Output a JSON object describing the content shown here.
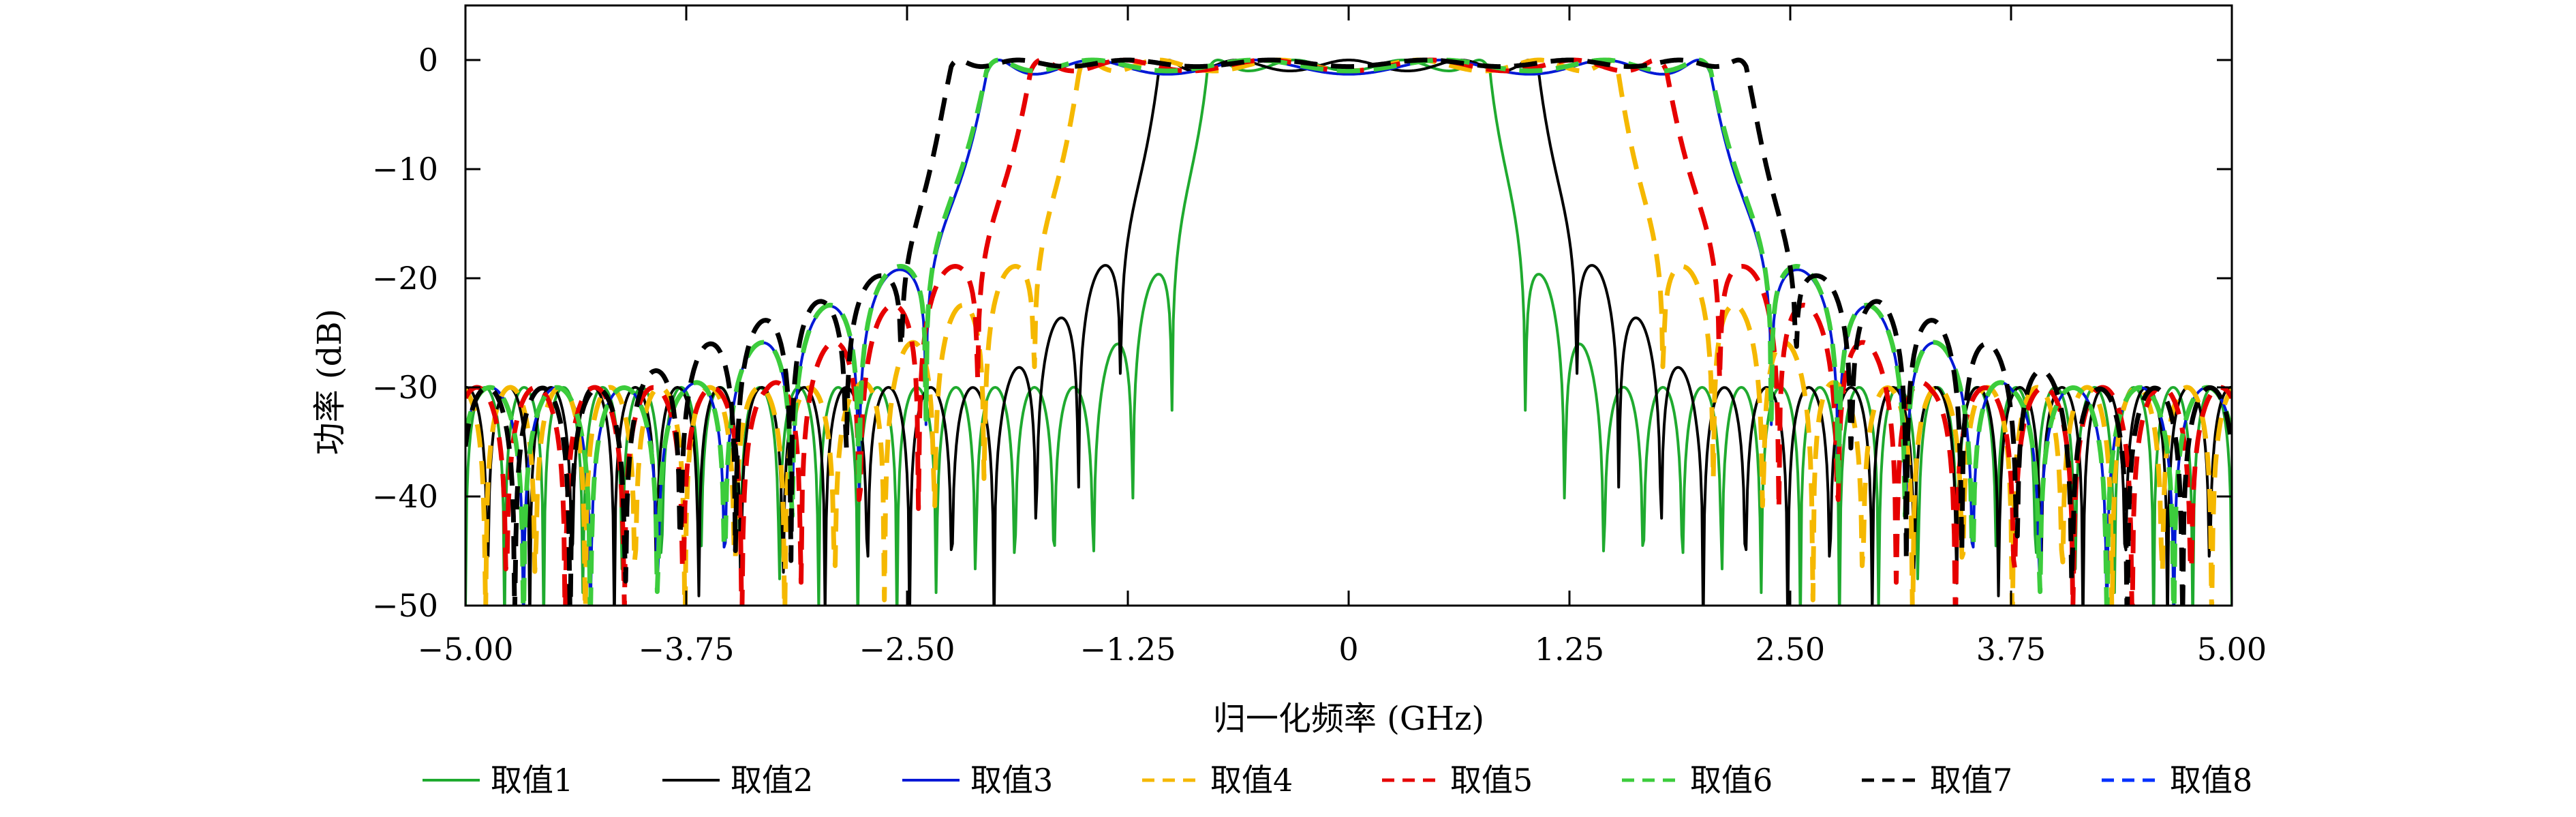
{
  "chart_data": {
    "type": "line",
    "xlabel": "归一化频率 (GHz)",
    "ylabel": "功率 (dB)",
    "xlim": [
      -5,
      5
    ],
    "ylim": [
      -50,
      5
    ],
    "xticks": [
      -5,
      -3.75,
      -2.5,
      -1.25,
      0,
      1.25,
      2.5,
      3.75,
      5
    ],
    "xtick_labels": [
      "-5.00",
      "-3.75",
      "-2.50",
      "-1.25",
      "0",
      "1.25",
      "2.50",
      "3.75",
      "5.00"
    ],
    "yticks": [
      0,
      -10,
      -20,
      -30,
      -40,
      -50
    ],
    "ytick_labels": [
      "0",
      "-10",
      "-20",
      "-30",
      "-40",
      "-50"
    ],
    "grid": false,
    "legend_position": "bottom",
    "series": [
      {
        "name": "取值1",
        "color": "#1faa2f",
        "dash": "solid",
        "bw": 1.6,
        "N": 4,
        "ripple": 1.0,
        "x": [
          -5,
          -4.9,
          -4.6,
          -4.3,
          -3.95,
          -3.55,
          -3.25,
          -2.9,
          -2.5,
          -2.05,
          -1.6,
          -1.0,
          0,
          1.0,
          1.6,
          2.05,
          2.5,
          2.9,
          3.25,
          3.55,
          3.95,
          4.3,
          4.6,
          4.9,
          5
        ],
        "y": [
          -50,
          -36,
          -27.5,
          -31,
          -50,
          -28,
          -26,
          -30,
          -50,
          -22,
          -50,
          -6,
          -0.5,
          -6,
          -50,
          -22,
          -50,
          -30,
          -26,
          -28,
          -50,
          -31,
          -27.5,
          -36,
          -50
        ]
      },
      {
        "name": "取值2",
        "color": "#000000",
        "dash": "solid",
        "bw": 2.15,
        "N": 5,
        "ripple": 1.0,
        "x": [
          -5,
          -4.6,
          -4.4,
          -4.1,
          -3.75,
          -3.25,
          -3.0,
          -2.65,
          -2.4,
          -2.15,
          -1.5,
          -0.8,
          0,
          0.8,
          1.5,
          2.15,
          2.4,
          2.65,
          3.0,
          3.25,
          3.75,
          4.1,
          4.4,
          4.6,
          5
        ],
        "y": [
          -23,
          -28,
          -50,
          -26,
          -21.5,
          -50,
          -30,
          -18.3,
          -30,
          -50,
          -7,
          -1,
          -0.3,
          -1,
          -7,
          -50,
          -30,
          -18.3,
          -30,
          -50,
          -21.5,
          -26,
          -50,
          -28,
          -23
        ]
      },
      {
        "name": "取值3",
        "color": "#0018d6",
        "dash": "solid",
        "bw": 4.1,
        "N": 6,
        "ripple": 1.3,
        "x": [
          -5,
          -4.8,
          -4.3,
          -3.75,
          -3.3,
          -3.1,
          -2.85,
          -2.7,
          -2.0,
          -1.0,
          0,
          1.0,
          2.0,
          2.7,
          2.85,
          3.1,
          3.3,
          3.75,
          4.3,
          4.8,
          5
        ],
        "y": [
          -38,
          -8,
          -27.4,
          -50,
          -23,
          -25,
          -40,
          -50,
          -5,
          -0.4,
          -1.3,
          -0.4,
          -5,
          -50,
          -40,
          -25,
          -23,
          -50,
          -27.4,
          -8,
          -38
        ]
      },
      {
        "name": "取值4",
        "color": "#f5b800",
        "dash": "dashed",
        "bw": 3.05,
        "N": 6,
        "ripple": 1.0,
        "x": [
          -5,
          -4.8,
          -4.5,
          -4.3,
          -4.0,
          -3.55,
          -3.05,
          -2.6,
          -2.0,
          -1.0,
          0,
          1.0,
          2.0,
          2.6,
          3.05,
          3.55,
          4.0,
          4.3,
          4.5,
          4.8,
          5
        ],
        "y": [
          -15,
          -15.5,
          -25,
          -30,
          -15,
          -12.5,
          -50,
          -16,
          -3,
          -0.8,
          -0.4,
          -0.8,
          -3,
          -16,
          -50,
          -12.5,
          -15,
          -30,
          -25,
          -15.5,
          -15
        ]
      },
      {
        "name": "取值5",
        "color": "#e60000",
        "dash": "dashed",
        "bw": 3.6,
        "N": 6,
        "ripple": 1.0,
        "x": [
          -5,
          -4.7,
          -4.55,
          -4.3,
          -3.95,
          -3.65,
          -3.4,
          -3.0,
          -2.0,
          -1.0,
          0,
          1.0,
          2.0,
          3.0,
          3.4,
          3.65,
          3.95,
          4.3,
          4.55,
          4.7,
          5
        ],
        "y": [
          -22,
          -25,
          -50,
          -30,
          -19.5,
          -50,
          -20,
          -8,
          -2,
          -1.2,
          -1,
          -1.2,
          -2,
          -8,
          -20,
          -50,
          -19.5,
          -30,
          -50,
          -25,
          -22
        ]
      },
      {
        "name": "取值6",
        "color": "#3ccc3c",
        "dash": "dashed",
        "bw": 4.1,
        "N": 6,
        "ripple": 1.0,
        "x": [
          -5,
          -4.7,
          -4.3,
          -3.95,
          -3.5,
          -3.0,
          -2.0,
          -1.0,
          0,
          1.0,
          2.0,
          3.0,
          3.5,
          3.95,
          4.3,
          4.7,
          5
        ],
        "y": [
          -27.5,
          -20,
          -16,
          -31,
          -10,
          -3,
          -0.5,
          -0.2,
          -0.2,
          -0.2,
          -0.5,
          -3,
          -10,
          -31,
          -16,
          -20,
          -27.5
        ]
      },
      {
        "name": "取值7",
        "color": "#000000",
        "dash": "dashed",
        "bw": 4.5,
        "N": 8,
        "ripple": 0.6,
        "x": [
          -5,
          -4.8,
          -4.55,
          -4.2,
          -3.5,
          -2.5,
          -1.5,
          0,
          1.5,
          2.5,
          3.5,
          4.2,
          4.55,
          4.8,
          5
        ],
        "y": [
          -15.5,
          -18,
          -50,
          -12,
          -2.5,
          -0.4,
          -0.3,
          -0.3,
          -0.3,
          -0.4,
          -2.5,
          -12,
          -50,
          -18,
          -15.5
        ]
      },
      {
        "name": "取值8",
        "color": "#0030ff",
        "dash": "dashed",
        "bw": null,
        "N": 0,
        "ripple": 0,
        "x": [],
        "y": []
      }
    ]
  }
}
